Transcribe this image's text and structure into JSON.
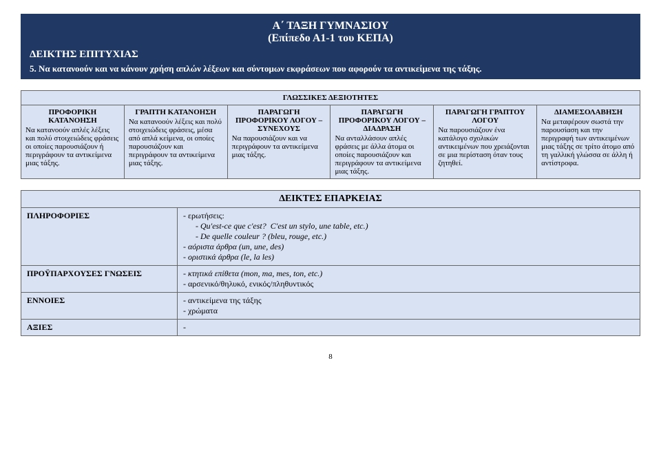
{
  "colors": {
    "banner_bg": "#1f3864",
    "banner_text": "#ffffff",
    "cell_bg": "#d9e2f3",
    "border": "#666666",
    "page_bg": "#ffffff",
    "text": "#000000"
  },
  "banner": {
    "title": "Α΄ ΤΑΞΗ ΓΥΜΝΑΣΙΟΥ",
    "subtitle": "(Επίπεδο Α1-1 του ΚΕΠΑ)",
    "section": "ΔΕΙΚΤΗΣ ΕΠΙΤΥΧΙΑΣ",
    "item": "5.  Να κατανοούν και να κάνουν χρήση απλών λέξεων και σύντομων εκφράσεων που αφορούν τα αντικείμενα της τάξης."
  },
  "skills": {
    "header": "ΓΛΩΣΣΙΚΕΣ ΔΕΞΙΟΤΗΤΕΣ",
    "cols": [
      {
        "title": "ΠΡΟΦΟΡΙΚΗ ΚΑΤΑΝΟΗΣΗ",
        "body": "Να κατανοούν απλές λέξεις και πολύ στοιχειώδεις φράσεις οι οποίες παρουσιάζουν ή περιγράφουν τα αντικείμενα μιας τάξης."
      },
      {
        "title": "ΓΡΑΠΤΗ ΚΑΤΑΝΟΗΣΗ",
        "body": "Να κατανοούν λέξεις και πολύ στοιχειώδεις φράσεις, μέσα από απλά κείμενα, οι οποίες παρουσιάζουν και περιγράφουν τα αντικείμενα μιας τάξης."
      },
      {
        "title": "ΠΑΡΑΓΩΓΗ ΠΡΟΦΟΡΙΚΟΥ ΛΟΓΟΥ – ΣΥΝΕΧΟΥΣ",
        "body": "Να παρουσιάζουν και να περιγράφουν τα αντικείμενα μιας τάξης."
      },
      {
        "title": "ΠΑΡΑΓΩΓΗ ΠΡΟΦΟΡΙΚΟΥ ΛΟΓΟΥ – ΔΙΑΔΡΑΣΗ",
        "body": "Να ανταλλάσουν απλές φράσεις με άλλα άτομα οι οποίες παρουσιάζουν και περιγράφουν τα αντικείμενα μιας τάξης."
      },
      {
        "title": "ΠΑΡΑΓΩΓΗ ΓΡΑΠΤΟΥ ΛΟΓΟΥ",
        "body": "Να παρουσιάζουν ένα κατάλογο σχολικών αντικειμένων που χρειάζονται σε μια περίσταση όταν τους ζητηθεί."
      },
      {
        "title": "ΔΙΑΜΕΣΟΛΑΒΗΣΗ",
        "body": "Να μεταφέρουν σωστά την παρουσίαση και την περιγραφή των αντικειμένων μιας τάξης σε τρίτο άτομο από τη γαλλική γλώσσα σε άλλη ή αντίστροφα."
      }
    ]
  },
  "adequacy": {
    "header": "ΔΕΙΚΤΕΣ ΕΠΑΡΚΕΙΑΣ",
    "rows": {
      "info": {
        "label": "ΠΛΗΡΟΦΟΡΙΕΣ",
        "lines": {
          "q_label": "ερωτήσεις:",
          "q1_a": "Qu'est-ce que c'est?",
          "q1_b": "C'est un stylo, une table, etc.)",
          "q2": "De quelle couleur ? (bleu, rouge, etc.)",
          "indef": "αόριστα άρθρα (un, une, des)",
          "def": "οριστικά άρθρα (le, la les)"
        }
      },
      "prior": {
        "label": "ΠΡΟΫΠΑΡΧΟΥΣΕΣ ΓΝΩΣΕΙΣ",
        "lines": {
          "poss": "κτητικά επίθετα (mon, ma, mes, ton, etc.)",
          "gender": "αρσενικό/θηλυκό, ενικός/πληθυντικός"
        }
      },
      "concepts": {
        "label": "ΕΝΝΟΙΕΣ",
        "lines": {
          "objects": "αντικείμενα της τάξης",
          "colors": "χρώματα"
        }
      },
      "values": {
        "label": "ΑΞΙΕΣ",
        "body": "-"
      }
    }
  },
  "page_number": "8"
}
